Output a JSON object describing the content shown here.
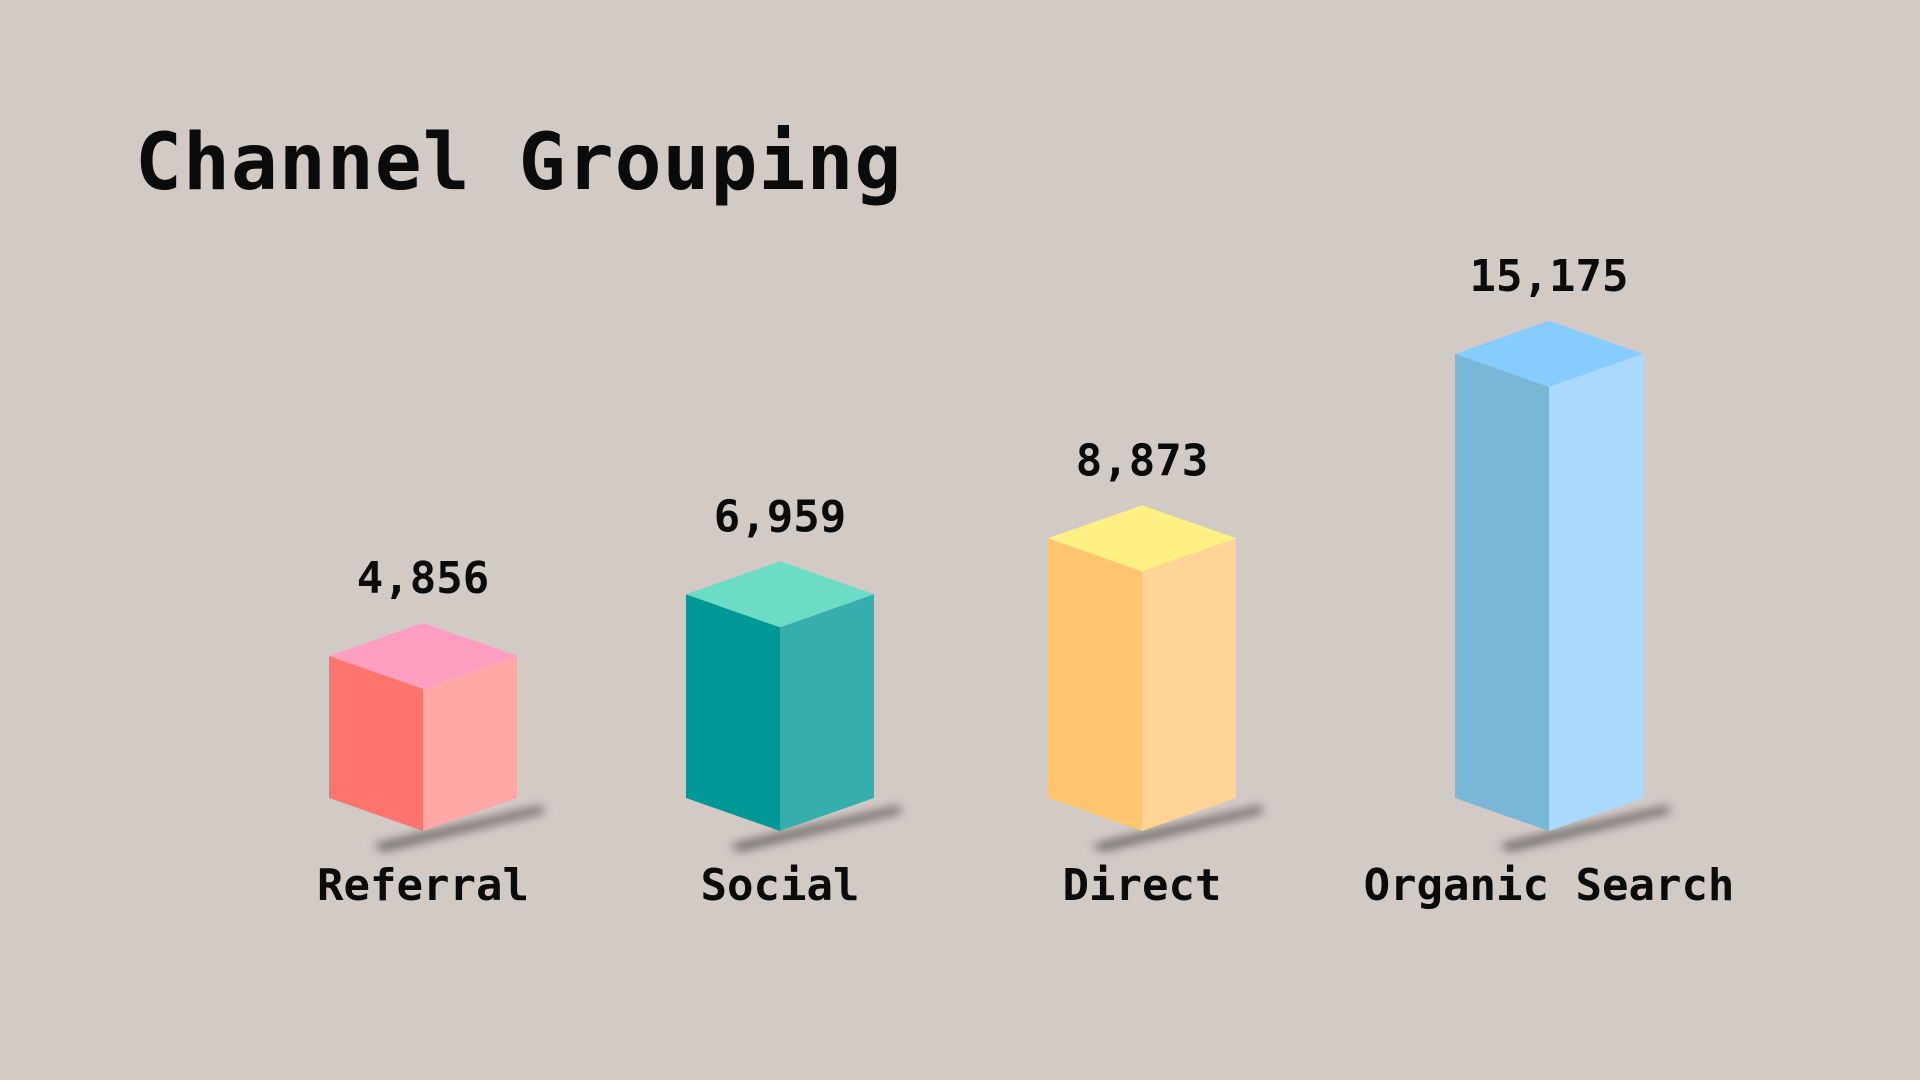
{
  "chart_data": {
    "type": "bar",
    "title": "Channel Grouping",
    "categories": [
      "Referral",
      "Social",
      "Direct",
      "Organic Search"
    ],
    "values": [
      4856,
      6959,
      8873,
      15175
    ],
    "value_labels": [
      "4,856",
      "6,959",
      "8,873",
      "15,175"
    ],
    "xlabel": "",
    "ylabel": "",
    "grid": false,
    "legend": "none",
    "style": "3d-isometric-columns",
    "colors": [
      {
        "left": "#ff746c",
        "right": "#ffa8a5",
        "top": "#ff9ec0"
      },
      {
        "left": "#009896",
        "right": "#36aeae",
        "top": "#6cdcc4"
      },
      {
        "left": "#ffc46e",
        "right": "#ffd496",
        "top": "#fff084"
      },
      {
        "left": "#78b8d6",
        "right": "#abd8ff",
        "top": "#86ccfe"
      }
    ]
  }
}
